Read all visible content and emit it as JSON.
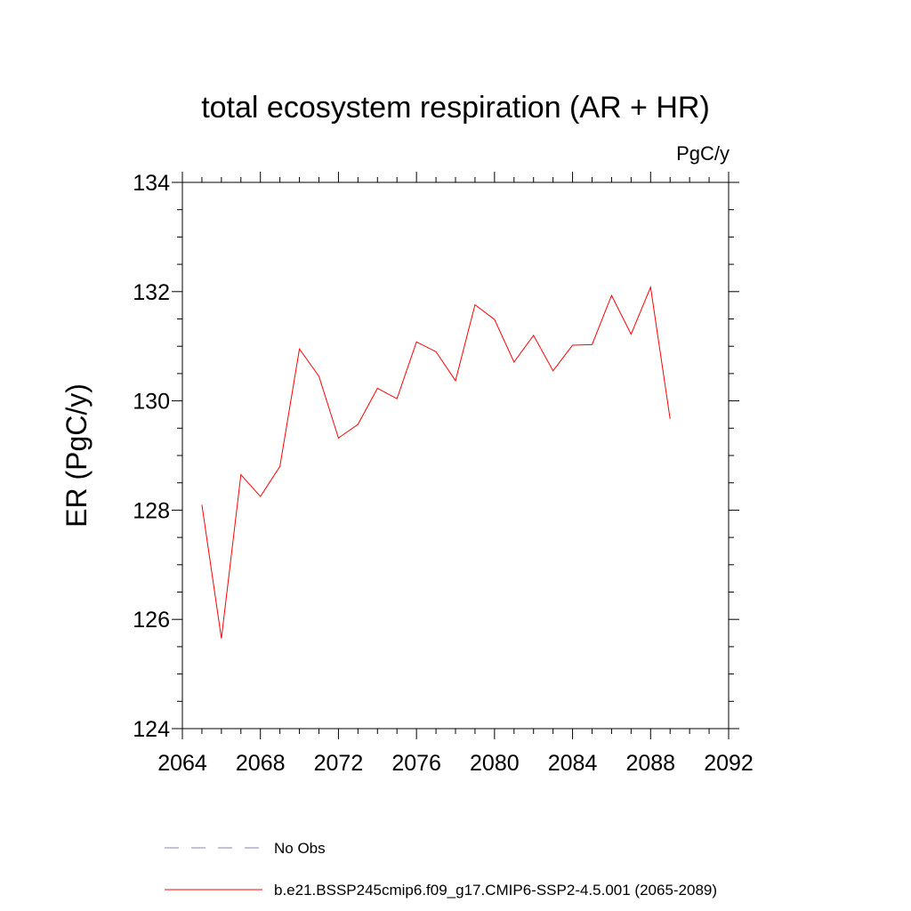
{
  "chart_data": {
    "type": "line",
    "title": "total ecosystem respiration (AR + HR)",
    "units_label": "PgC/y",
    "ylabel": "ER  (PgC/y)",
    "xlabel": "",
    "xlim": [
      2064,
      2092
    ],
    "ylim": [
      124,
      134
    ],
    "x_ticks": [
      "2064",
      "2068",
      "2072",
      "2076",
      "2080",
      "2084",
      "2088",
      "2092"
    ],
    "y_ticks": [
      "124",
      "126",
      "128",
      "130",
      "132",
      "134"
    ],
    "grid": false,
    "legend_position": "bottom",
    "series": [
      {
        "name": "b.e21.BSSP245cmip6.f09_g17.CMIP6-SSP2-4.5.001 (2065-2089)",
        "color": "#ff0000",
        "style": "solid",
        "x": [
          2065,
          2066,
          2067,
          2068,
          2069,
          2070,
          2071,
          2072,
          2073,
          2074,
          2075,
          2076,
          2077,
          2078,
          2079,
          2080,
          2081,
          2082,
          2083,
          2084,
          2085,
          2086,
          2087,
          2088,
          2089
        ],
        "y": [
          128.1,
          125.65,
          128.65,
          128.25,
          128.8,
          130.95,
          130.45,
          129.32,
          129.57,
          130.23,
          130.04,
          131.08,
          130.9,
          130.37,
          131.76,
          131.49,
          130.71,
          131.2,
          130.55,
          131.02,
          131.03,
          131.93,
          131.22,
          132.08,
          129.67
        ]
      },
      {
        "name": "No Obs",
        "color": "#8080c0",
        "style": "dashed",
        "x": [],
        "y": []
      }
    ]
  }
}
